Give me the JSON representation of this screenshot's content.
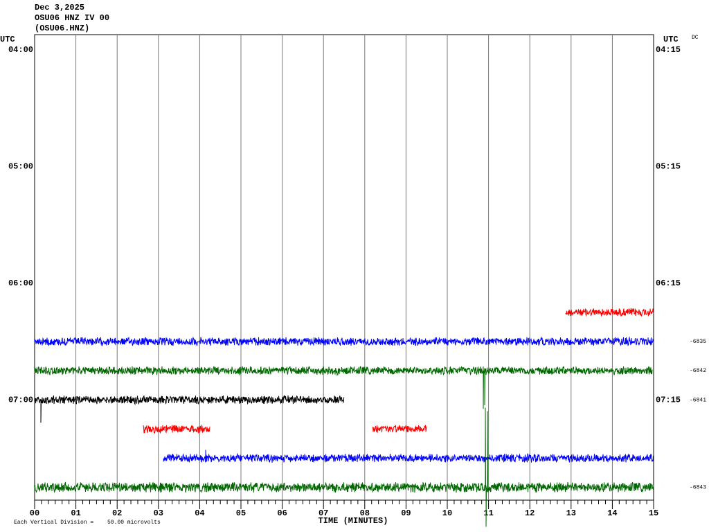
{
  "header": {
    "date": "Dec 3,2025",
    "station": "OSU06 HNZ IV 00",
    "channel": "(OSU06.HNZ)"
  },
  "left_axis": {
    "title": "UTC",
    "labels": [
      "04:00",
      "05:00",
      "06:00",
      "07:00"
    ]
  },
  "right_axis": {
    "title": "UTC",
    "labels": [
      "04:15",
      "05:15",
      "06:15",
      "07:15"
    ],
    "mode": "DC"
  },
  "trace_labels": [
    "-6835",
    "-6842",
    "-6841",
    "-6843"
  ],
  "x_axis": {
    "labels": [
      "00",
      "01",
      "02",
      "03",
      "04",
      "05",
      "06",
      "07",
      "08",
      "09",
      "10",
      "11",
      "12",
      "13",
      "14",
      "15"
    ],
    "title": "TIME (MINUTES)"
  },
  "footer": {
    "scale": "Each Vertical Division =",
    "value": "50.00 microvolts"
  }
}
